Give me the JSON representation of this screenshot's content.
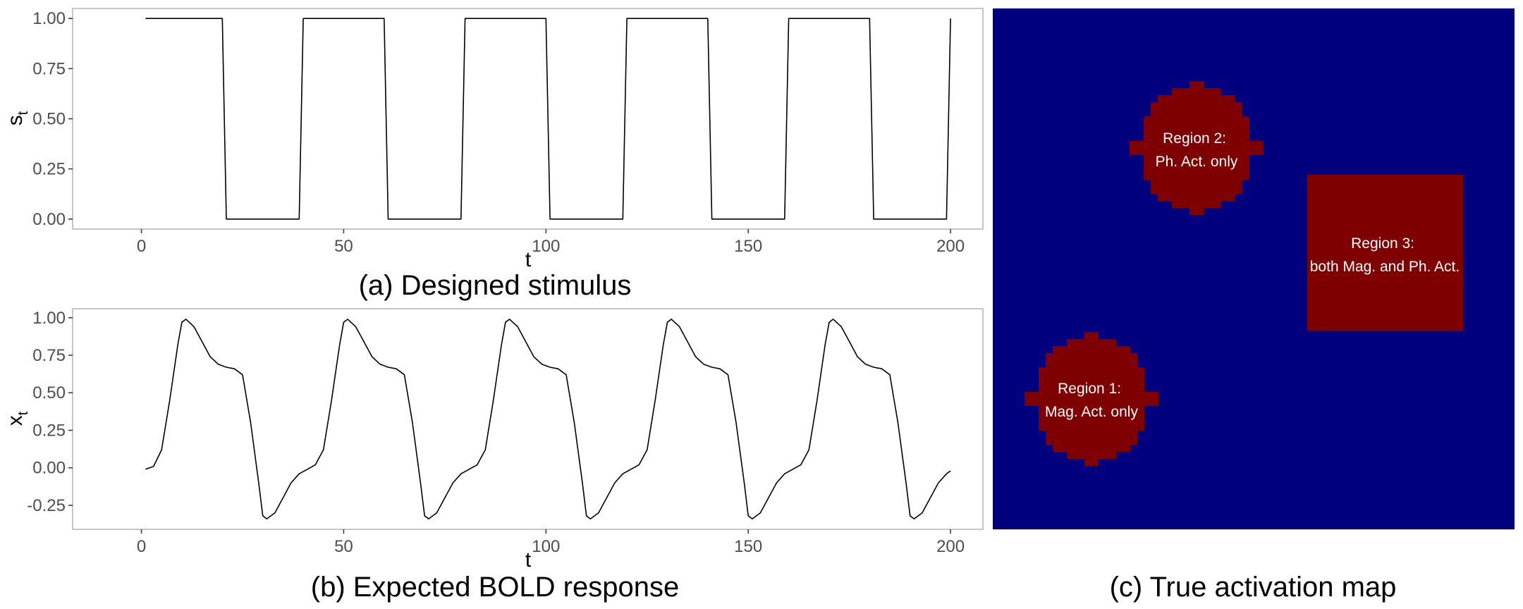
{
  "chart_data": [
    {
      "type": "line",
      "caption": "(a) Designed stimulus",
      "xlabel": "t",
      "ylabel": "s",
      "ylabel_sub": "t",
      "xlim": [
        -17,
        208
      ],
      "ylim": [
        -0.05,
        1.05
      ],
      "xticks": [
        "0",
        "50",
        "100",
        "150",
        "200"
      ],
      "yticks": [
        "0.00",
        "0.25",
        "0.50",
        "0.75",
        "1.00"
      ],
      "grid": false,
      "series": [
        {
          "x": [
            1,
            20,
            21,
            39,
            40,
            60,
            61,
            79,
            80,
            100,
            101,
            119,
            120,
            140,
            141,
            159,
            160,
            180,
            181,
            199,
            200
          ],
          "values": [
            1,
            1,
            0,
            0,
            1,
            1,
            0,
            0,
            1,
            1,
            0,
            0,
            1,
            1,
            0,
            0,
            1,
            1,
            0,
            0,
            1
          ]
        }
      ]
    },
    {
      "type": "line",
      "caption": "(b) Expected BOLD response",
      "xlabel": "t",
      "ylabel": "x",
      "ylabel_sub": "t",
      "xlim": [
        -17,
        208
      ],
      "ylim": [
        -0.41,
        1.06
      ],
      "xticks": [
        "0",
        "50",
        "100",
        "150",
        "200"
      ],
      "yticks": [
        "-0.25",
        "0.00",
        "0.25",
        "0.50",
        "0.75",
        "1.00"
      ],
      "grid": false,
      "series": [
        {
          "x": [
            1,
            3,
            5,
            7,
            9,
            10,
            11,
            13,
            15,
            17,
            19,
            21,
            23,
            25,
            27,
            29,
            30,
            31,
            33,
            35,
            37,
            39,
            41,
            43,
            45,
            47,
            49,
            50,
            51,
            53,
            55,
            57,
            59,
            61,
            63,
            65,
            67,
            69,
            70,
            71,
            73,
            75,
            77,
            79,
            81,
            83,
            85,
            87,
            89,
            90,
            91,
            93,
            95,
            97,
            99,
            101,
            103,
            105,
            107,
            109,
            110,
            111,
            113,
            115,
            117,
            119,
            121,
            123,
            125,
            127,
            129,
            130,
            131,
            133,
            135,
            137,
            139,
            141,
            143,
            145,
            147,
            149,
            150,
            151,
            153,
            155,
            157,
            159,
            161,
            163,
            165,
            167,
            169,
            170,
            171,
            173,
            175,
            177,
            179,
            181,
            183,
            185,
            187,
            189,
            190,
            191,
            193,
            195,
            197,
            199,
            200
          ],
          "values": [
            -0.01,
            0.01,
            0.12,
            0.45,
            0.82,
            0.97,
            0.99,
            0.94,
            0.84,
            0.74,
            0.69,
            0.67,
            0.66,
            0.62,
            0.3,
            -0.1,
            -0.32,
            -0.34,
            -0.3,
            -0.2,
            -0.1,
            -0.04,
            -0.01,
            0.02,
            0.12,
            0.45,
            0.82,
            0.97,
            0.99,
            0.94,
            0.84,
            0.74,
            0.69,
            0.67,
            0.66,
            0.62,
            0.3,
            -0.1,
            -0.32,
            -0.34,
            -0.3,
            -0.2,
            -0.1,
            -0.04,
            -0.01,
            0.02,
            0.12,
            0.45,
            0.82,
            0.97,
            0.99,
            0.94,
            0.84,
            0.74,
            0.69,
            0.67,
            0.66,
            0.62,
            0.3,
            -0.1,
            -0.32,
            -0.34,
            -0.3,
            -0.2,
            -0.1,
            -0.04,
            -0.01,
            0.02,
            0.12,
            0.45,
            0.82,
            0.97,
            0.99,
            0.94,
            0.84,
            0.74,
            0.69,
            0.67,
            0.66,
            0.62,
            0.3,
            -0.1,
            -0.32,
            -0.34,
            -0.3,
            -0.2,
            -0.1,
            -0.04,
            -0.01,
            0.02,
            0.12,
            0.45,
            0.82,
            0.97,
            0.99,
            0.94,
            0.84,
            0.74,
            0.69,
            0.67,
            0.66,
            0.62,
            0.3,
            -0.1,
            -0.32,
            -0.34,
            -0.3,
            -0.2,
            -0.1,
            -0.04,
            -0.02
          ]
        }
      ]
    },
    {
      "type": "heatmap",
      "caption": "(c) True activation map",
      "background_color": "#00007f",
      "active_color": "#7f0000",
      "regions": [
        {
          "line1": "Region 1:",
          "line2": "Mag. Act. only"
        },
        {
          "line1": "Region 2:",
          "line2": "Ph. Act. only"
        },
        {
          "line1": "Region 3:",
          "line2": "both Mag. and Ph. Act."
        }
      ]
    }
  ]
}
